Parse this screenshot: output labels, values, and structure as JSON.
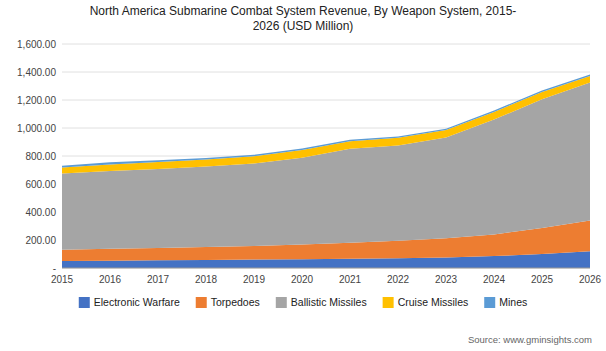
{
  "chart_data": {
    "type": "area",
    "stacked": true,
    "title": "North America Submarine Combat System Revenue, By Weapon System, 2015-\n2026 (USD Million)",
    "x": [
      2015,
      2016,
      2017,
      2018,
      2019,
      2020,
      2021,
      2022,
      2023,
      2024,
      2025,
      2026
    ],
    "series": [
      {
        "name": "Electronic Warfare",
        "color": "#4472C4",
        "values": [
          50,
          52,
          55,
          58,
          60,
          63,
          66,
          70,
          75,
          85,
          100,
          120
        ]
      },
      {
        "name": "Torpedoes",
        "color": "#ED7D31",
        "values": [
          80,
          85,
          88,
          92,
          97,
          105,
          115,
          125,
          138,
          155,
          185,
          220
        ]
      },
      {
        "name": "Ballistic Missiles",
        "color": "#A5A5A5",
        "values": [
          545,
          555,
          565,
          575,
          590,
          620,
          670,
          680,
          720,
          820,
          920,
          985
        ]
      },
      {
        "name": "Cruise Missiles",
        "color": "#FFC000",
        "values": [
          42,
          48,
          50,
          50,
          52,
          55,
          55,
          55,
          52,
          55,
          52,
          47
        ]
      },
      {
        "name": "Mines",
        "color": "#5B9BD5",
        "values": [
          13,
          15,
          12,
          10,
          10,
          10,
          10,
          10,
          10,
          10,
          10,
          10
        ]
      }
    ],
    "xlim": [
      2015,
      2026
    ],
    "xticks": [
      2015,
      2016,
      2017,
      2018,
      2019,
      2020,
      2021,
      2022,
      2023,
      2024,
      2025,
      2026
    ],
    "ylim": [
      0,
      1600
    ],
    "yticks": [
      {
        "value": 0,
        "label": "-"
      },
      {
        "value": 200,
        "label": "200.00"
      },
      {
        "value": 400,
        "label": "400.00"
      },
      {
        "value": 600,
        "label": "600.00"
      },
      {
        "value": 800,
        "label": "800.00"
      },
      {
        "value": 1000,
        "label": "1,000.00"
      },
      {
        "value": 1200,
        "label": "1,200.00"
      },
      {
        "value": 1400,
        "label": "1,400.00"
      },
      {
        "value": 1600,
        "label": "1,600.00"
      }
    ],
    "grid": true,
    "legend": "bottom",
    "annotations": [
      "Source: www.gminsights.com"
    ]
  }
}
